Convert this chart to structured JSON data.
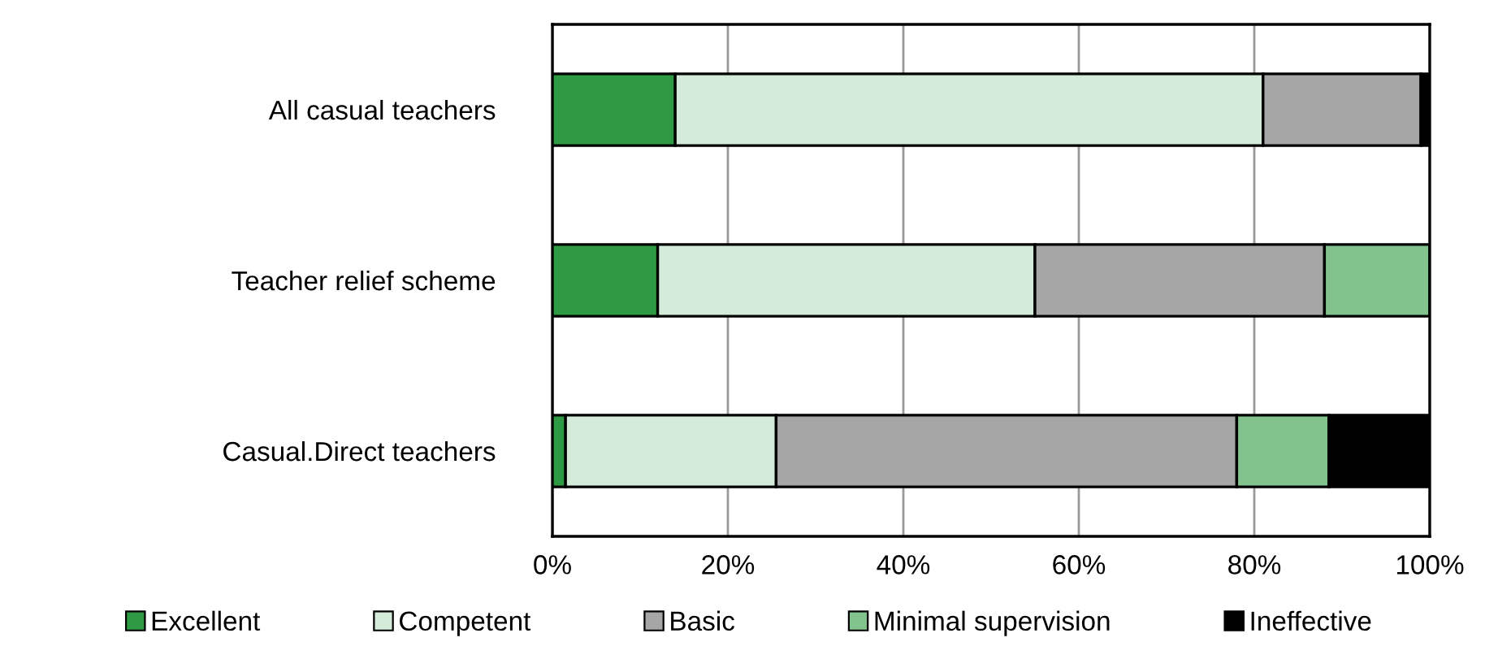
{
  "chart_data": {
    "type": "bar",
    "orientation": "horizontal",
    "stacked": true,
    "categories": [
      "All casual teachers",
      "Teacher relief scheme",
      "Casual.Direct teachers"
    ],
    "series": [
      {
        "name": "Excellent",
        "color": "#2e9a44",
        "values": [
          14,
          12,
          1.5
        ]
      },
      {
        "name": "Competent",
        "color": "#d5ebd9",
        "values": [
          67,
          43,
          24
        ]
      },
      {
        "name": "Basic",
        "color": "#a6a6a6",
        "values": [
          18,
          33,
          52.5
        ]
      },
      {
        "name": "Minimal supervision",
        "color": "#82c28c",
        "values": [
          0,
          12,
          10.5
        ]
      },
      {
        "name": "Ineffective",
        "color": "#000000",
        "values": [
          1,
          0,
          11.5
        ]
      }
    ],
    "xlim": [
      0,
      100
    ],
    "xticks": [
      {
        "value": 0,
        "label": "0%"
      },
      {
        "value": 20,
        "label": "20%"
      },
      {
        "value": 40,
        "label": "40%"
      },
      {
        "value": 60,
        "label": "60%"
      },
      {
        "value": 80,
        "label": "80%"
      },
      {
        "value": 100,
        "label": "100%"
      }
    ],
    "grid": "x",
    "legend": "bottom"
  }
}
